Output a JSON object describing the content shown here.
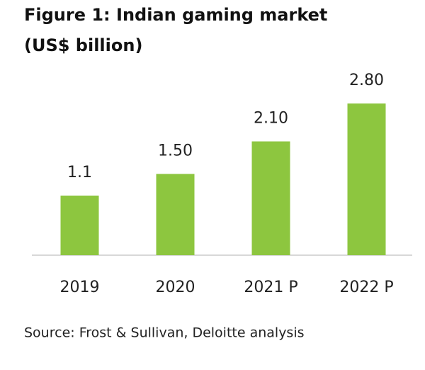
{
  "chart_data": {
    "type": "bar",
    "title": "Figure 1: Indian gaming market",
    "subtitle": "(US$ billion)",
    "categories": [
      "2019",
      "2020",
      "2021 P",
      "2022 P"
    ],
    "values": [
      1.1,
      1.5,
      2.1,
      2.8
    ],
    "value_labels": [
      "1.1",
      "1.50",
      "2.10",
      "2.80"
    ],
    "color": "#8dc63f",
    "source": "Source: Frost & Sullivan, Deloitte analysis"
  }
}
